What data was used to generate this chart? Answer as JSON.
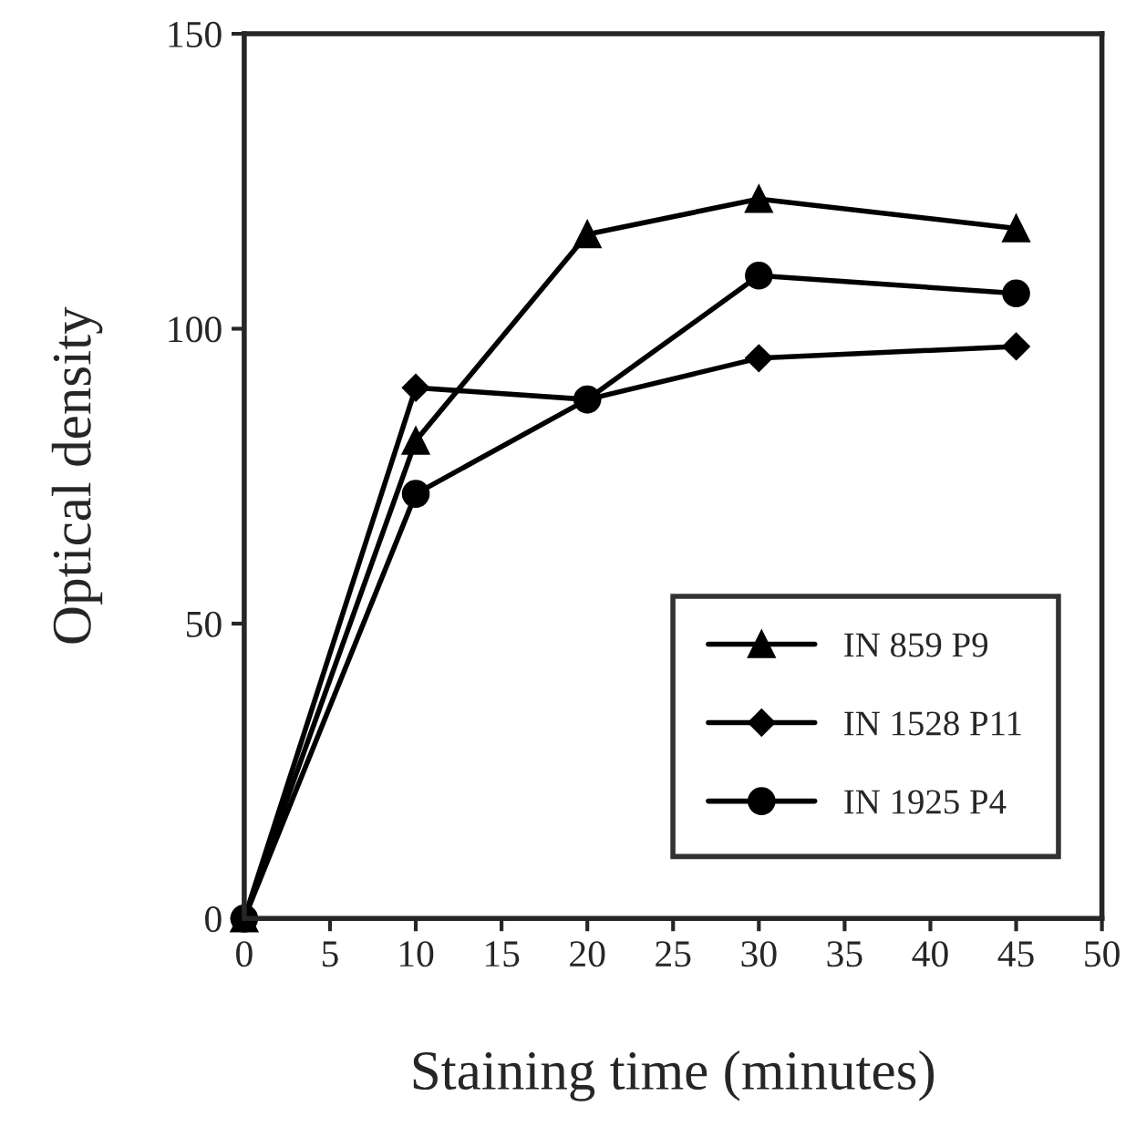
{
  "chart_data": {
    "type": "line",
    "xlabel": "Staining time (minutes)",
    "ylabel": "Optical density",
    "x": [
      0,
      10,
      20,
      30,
      45
    ],
    "series": [
      {
        "name": "IN 859 P9",
        "color": "#000000",
        "marker": "triangle",
        "values": [
          0,
          81,
          116,
          122,
          117
        ]
      },
      {
        "name": "IN 1528 P11",
        "color": "#000000",
        "marker": "diamond",
        "values": [
          0,
          90,
          88,
          95,
          97
        ]
      },
      {
        "name": "IN 1925 P4",
        "color": "#000000",
        "marker": "circle",
        "values": [
          0,
          72,
          88,
          109,
          106
        ]
      }
    ],
    "xlim": [
      0,
      50
    ],
    "xticks": [
      0,
      5,
      10,
      15,
      20,
      25,
      30,
      35,
      40,
      45,
      50
    ],
    "ylim": [
      0,
      150
    ],
    "yticks": [
      0,
      50,
      100,
      150
    ],
    "grid": false,
    "legend": "bottom right",
    "line_style": "solid"
  }
}
